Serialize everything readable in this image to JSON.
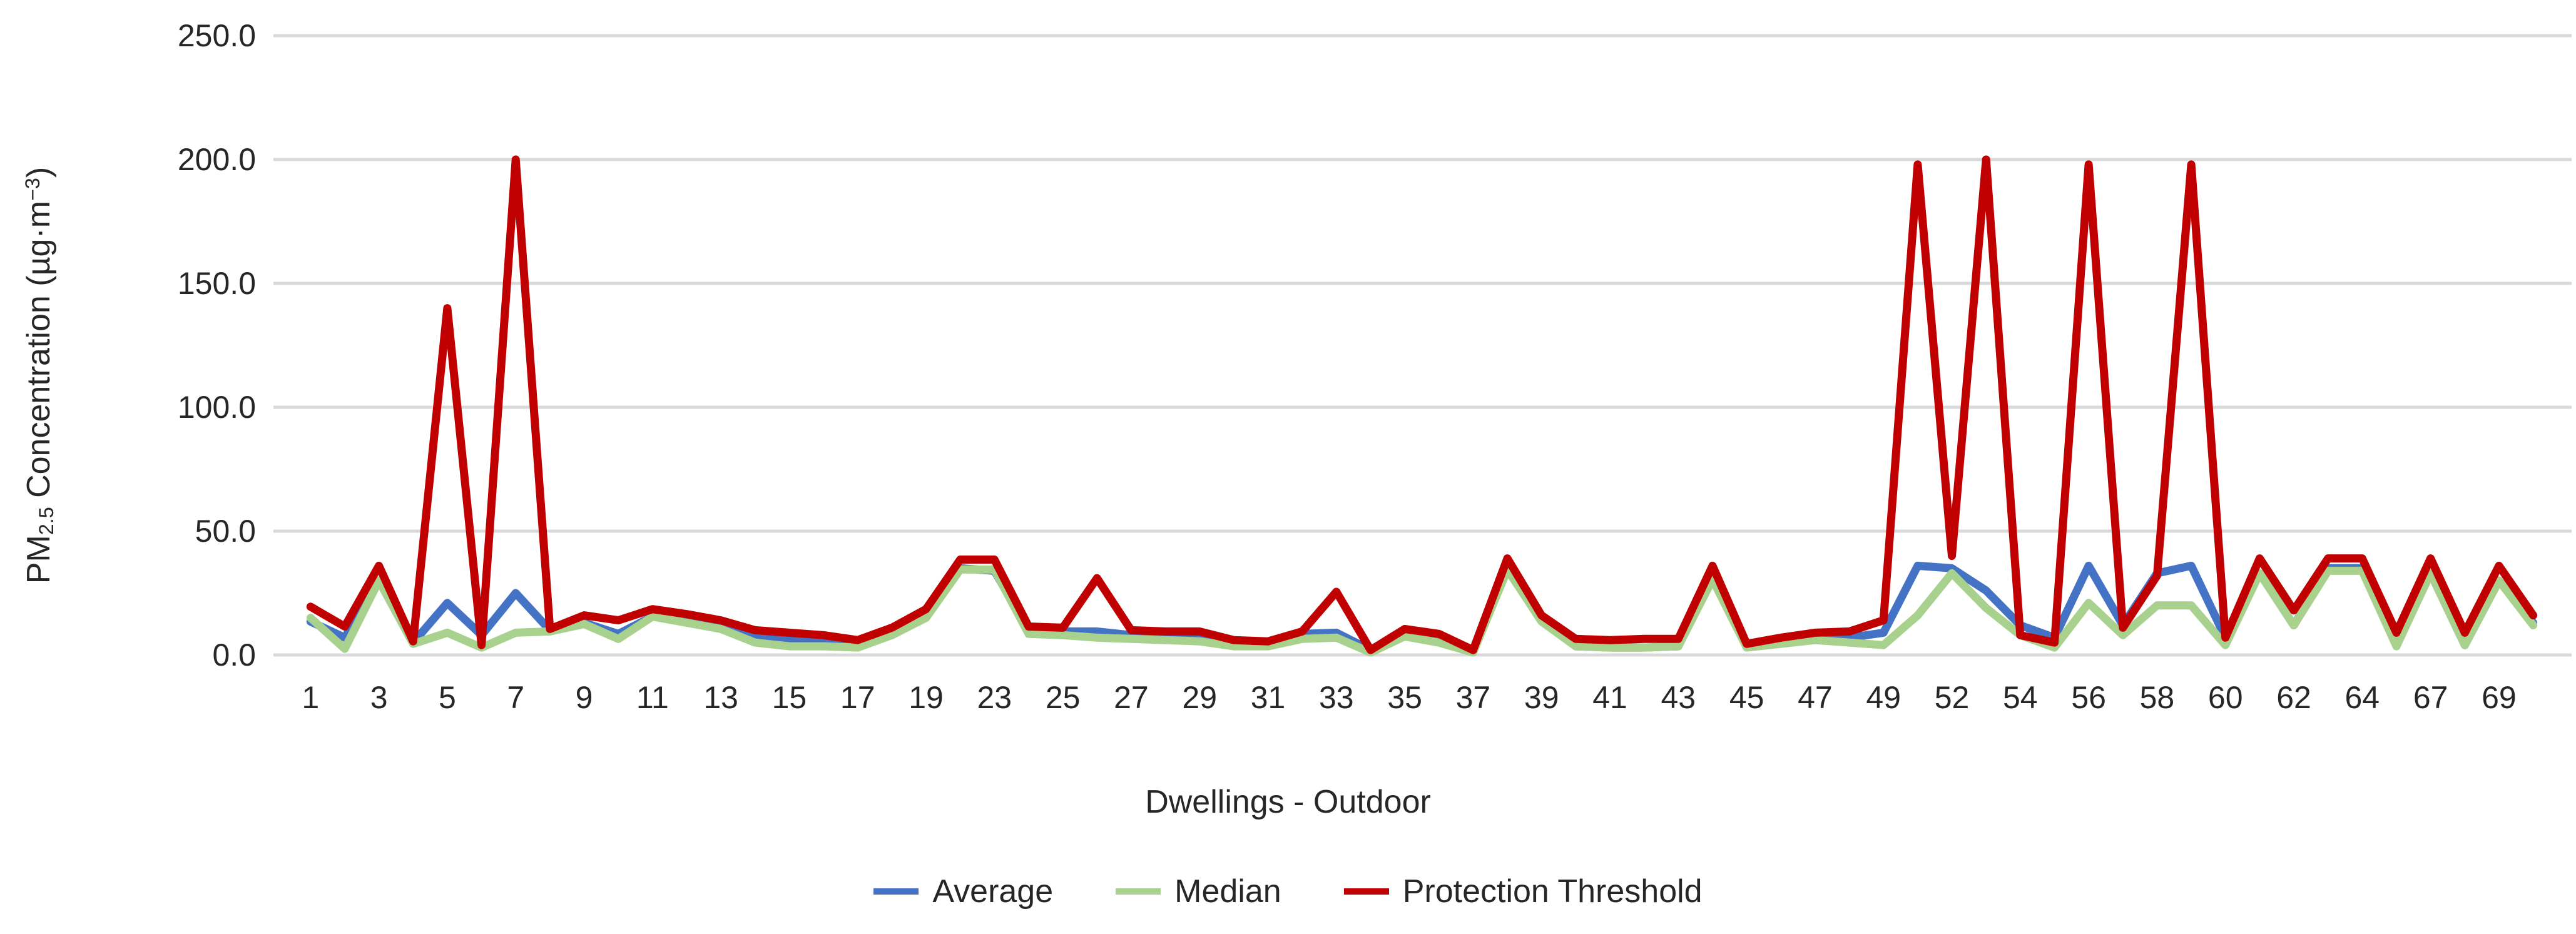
{
  "chart_data": {
    "type": "line",
    "title": "",
    "xlabel": "Dwellings - Outdoor",
    "ylabel_parts": {
      "prefix": "PM",
      "sub": "2.5",
      "mid": " Concentration (µg·m",
      "sup": "−3",
      "suffix": ")"
    },
    "ylim": [
      0,
      250
    ],
    "y_tick_labels": [
      "0.0",
      "50.0",
      "100.0",
      "150.0",
      "200.0",
      "250.0"
    ],
    "grid": true,
    "legend_position": "bottom",
    "gridline_color": "#D9D9D9",
    "text_color": "#262626",
    "categories": [
      "1",
      "",
      "3",
      "",
      "5",
      "",
      "7",
      "",
      "9",
      "",
      "11",
      "",
      "13",
      "",
      "15",
      "",
      "17",
      "",
      "19",
      "",
      "23",
      "",
      "25",
      "",
      "27",
      "",
      "29",
      "",
      "31",
      "",
      "33",
      "",
      "35",
      "",
      "37",
      "",
      "39",
      "",
      "41",
      "",
      "43",
      "",
      "45",
      "",
      "47",
      "",
      "49",
      "",
      "52",
      "",
      "54",
      "",
      "56",
      "",
      "58",
      "",
      "60",
      "",
      "62",
      "",
      "64",
      "",
      "67",
      "",
      "69",
      ""
    ],
    "series": [
      {
        "name": "Average",
        "color": "#4472C4",
        "values": [
          13.5,
          7,
          30,
          5,
          21,
          8,
          25,
          10,
          13,
          8.5,
          15.5,
          14,
          11,
          7.5,
          6,
          5.5,
          4,
          8,
          15.5,
          35,
          34,
          10,
          9.5,
          9.5,
          8,
          7,
          6.5,
          4.5,
          4.5,
          8.5,
          9,
          2,
          8.5,
          6.5,
          1.5,
          34.5,
          14,
          3.5,
          3,
          3,
          3.5,
          31,
          4,
          5.5,
          6.5,
          7,
          9,
          36,
          35,
          26,
          12,
          7,
          36,
          12,
          33,
          36,
          7,
          33,
          12,
          35,
          35,
          4,
          33,
          4,
          30,
          13
        ]
      },
      {
        "name": "Median",
        "color": "#A9D18E",
        "values": [
          15,
          2.5,
          30,
          4.5,
          9,
          3,
          9,
          9.5,
          12.5,
          6.5,
          15.5,
          13,
          10.5,
          5,
          3.5,
          3.5,
          3,
          8,
          15,
          34.5,
          34.5,
          8.5,
          8,
          7,
          6.5,
          6,
          5.5,
          3.5,
          3.5,
          6.5,
          7,
          1,
          7.5,
          5,
          1,
          34.5,
          13.5,
          3.5,
          3,
          3,
          3.5,
          30.5,
          3,
          4.5,
          6,
          5,
          4,
          16,
          33,
          19,
          8,
          3,
          21,
          8,
          20,
          20,
          4,
          33,
          12,
          34,
          34,
          3.5,
          33,
          4,
          30,
          12
        ]
      },
      {
        "name": "Protection Threshold",
        "color": "#C00000",
        "values": [
          19.5,
          11.5,
          36,
          5.5,
          140,
          4,
          200,
          10.5,
          16,
          14,
          18.5,
          16.5,
          14,
          10,
          9,
          8,
          6,
          11,
          18.5,
          38.5,
          38.5,
          11.5,
          11,
          31,
          10,
          9.5,
          9.5,
          6,
          5.5,
          9.5,
          25.5,
          2,
          10.5,
          8.5,
          2,
          39,
          16,
          6.5,
          6,
          6.5,
          6.5,
          36,
          4.5,
          7,
          9,
          9.5,
          14,
          198,
          40,
          200,
          8,
          5,
          198,
          11,
          32,
          198,
          7,
          39,
          18,
          39,
          39,
          9,
          39,
          9,
          36,
          16
        ]
      }
    ]
  }
}
